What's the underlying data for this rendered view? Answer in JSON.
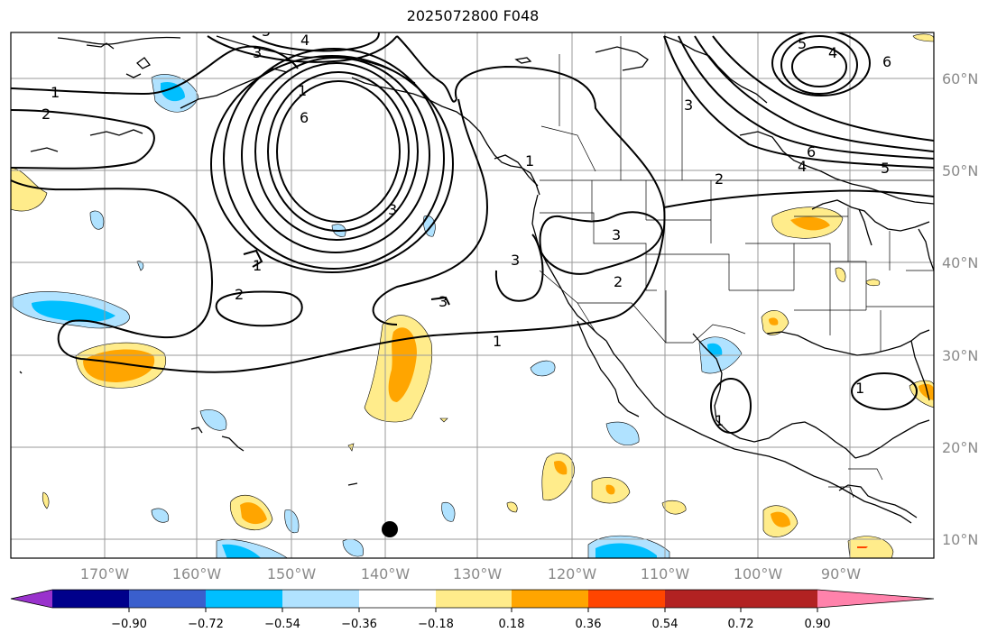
{
  "title": "2025072800 F048",
  "map": {
    "lon_labels": [
      "170°W",
      "160°W",
      "150°W",
      "140°W",
      "130°W",
      "120°W",
      "110°W",
      "100°W",
      "90°W"
    ],
    "lat_labels": [
      "60°N",
      "50°N",
      "40°N",
      "30°N",
      "20°N",
      "10°N"
    ],
    "contour_labels": [
      "1",
      "2",
      "3",
      "4",
      "5",
      "6"
    ],
    "marker": "black-dot"
  },
  "colorbar": {
    "ticks": [
      "−0.90",
      "−0.72",
      "−0.54",
      "−0.36",
      "−0.18",
      "0.18",
      "0.36",
      "0.54",
      "0.72",
      "0.90"
    ],
    "colors": [
      "#9932cc",
      "#00008b",
      "#3a5fcd",
      "#00bfff",
      "#b0e2ff",
      "#ffffff",
      "#ffec8b",
      "#ffa500",
      "#ff4500",
      "#b22222",
      "#ff82ab"
    ]
  }
}
